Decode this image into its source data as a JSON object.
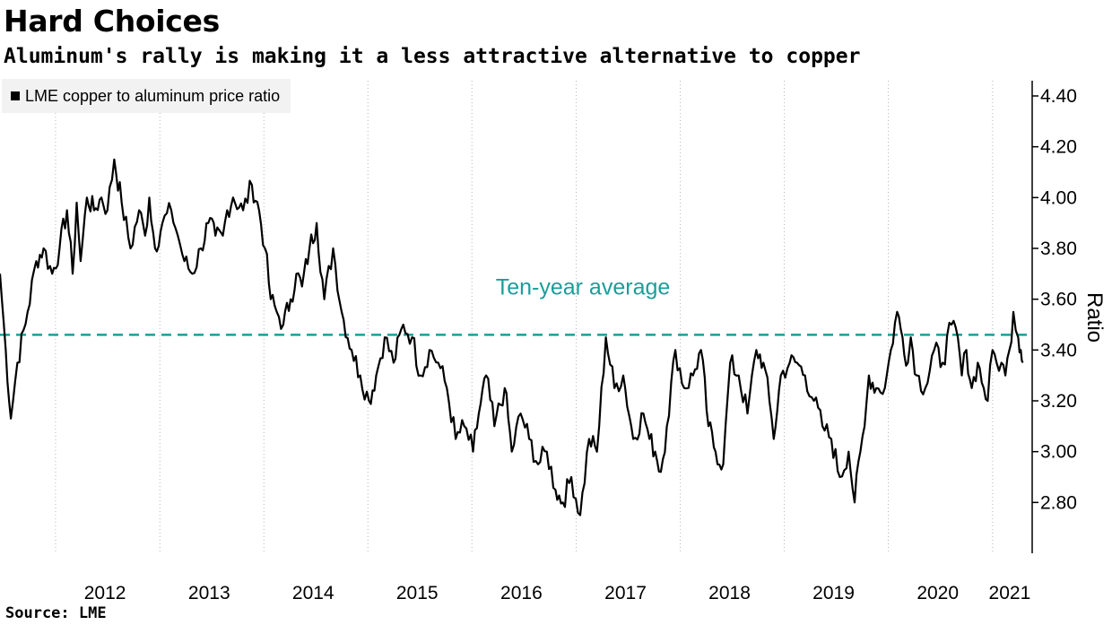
{
  "title": "Hard Choices",
  "subtitle": "Aluminum's rally is making it a less attractive alternative to copper",
  "source": "Source: LME",
  "colors": {
    "series": "#000000",
    "average": "#1a9e9a",
    "legend_bg": "#f2f2f2"
  },
  "chart_data": {
    "type": "line",
    "title": "Hard Choices",
    "subtitle": "Aluminum's rally is making it a less attractive alternative to copper",
    "ylabel": "Ratio",
    "xlabel": "",
    "ylim": [
      2.6,
      4.46
    ],
    "xlim": [
      "2011-06-20",
      "2021-05-20"
    ],
    "y_ticks": [
      2.8,
      3.0,
      3.2,
      3.4,
      3.6,
      3.8,
      4.0,
      4.2,
      4.4
    ],
    "y_tick_labels": [
      "2.80",
      "3.00",
      "3.20",
      "3.40",
      "3.60",
      "3.80",
      "4.00",
      "4.20",
      "4.40"
    ],
    "x_tick_labels": [
      "2012",
      "2013",
      "2014",
      "2015",
      "2016",
      "2017",
      "2018",
      "2019",
      "2020",
      "2021"
    ],
    "x_tick_dates": [
      "2012-01-01",
      "2013-01-01",
      "2014-01-01",
      "2015-01-01",
      "2016-01-01",
      "2017-01-01",
      "2018-01-01",
      "2019-01-01",
      "2020-01-01",
      "2021-01-01"
    ],
    "grid": {
      "vertical": true,
      "horizontal": false,
      "style": "dotted"
    },
    "legend": {
      "position": "top-left",
      "entries": [
        "LME copper to aluminum price ratio"
      ]
    },
    "annotations": [
      {
        "text": "Ten-year average",
        "y": 3.46
      }
    ],
    "series": [
      {
        "name": "LME copper to aluminum price ratio",
        "x": [
          "2011-06-20",
          "2011-07-10",
          "2011-07-28",
          "2011-08-20",
          "2011-09-25",
          "2011-10-25",
          "2011-11-20",
          "2011-12-20",
          "2012-01-15",
          "2012-02-10",
          "2012-03-01",
          "2012-03-15",
          "2012-03-29",
          "2012-04-20",
          "2012-05-15",
          "2012-06-10",
          "2012-07-01",
          "2012-07-25",
          "2012-08-20",
          "2012-09-20",
          "2012-10-20",
          "2012-11-10",
          "2012-11-25",
          "2012-12-15",
          "2013-01-10",
          "2013-02-10",
          "2013-03-05",
          "2013-03-28",
          "2013-04-25",
          "2013-05-25",
          "2013-06-20",
          "2013-07-15",
          "2013-08-10",
          "2013-08-25",
          "2013-09-15",
          "2013-10-20",
          "2013-11-20",
          "2013-12-15",
          "2014-01-05",
          "2014-01-25",
          "2014-02-15",
          "2014-03-10",
          "2014-04-05",
          "2014-04-25",
          "2014-05-15",
          "2014-06-10",
          "2014-07-05",
          "2014-08-01",
          "2014-09-01",
          "2014-10-01",
          "2014-11-05",
          "2014-12-05",
          "2015-01-05",
          "2015-01-30",
          "2015-03-01",
          "2015-04-01",
          "2015-05-05",
          "2015-06-05",
          "2015-07-05",
          "2015-08-05",
          "2015-09-05",
          "2015-10-05",
          "2015-11-05",
          "2015-12-05",
          "2016-01-05",
          "2016-01-25",
          "2016-02-20",
          "2016-03-20",
          "2016-04-25",
          "2016-05-20",
          "2016-06-20",
          "2016-07-20",
          "2016-08-20",
          "2016-09-20",
          "2016-10-20",
          "2016-11-15",
          "2016-12-15",
          "2017-01-15",
          "2017-02-15",
          "2017-03-15",
          "2017-04-15",
          "2017-05-15",
          "2017-06-15",
          "2017-07-20",
          "2017-08-25",
          "2017-09-15",
          "2017-10-05",
          "2017-10-25",
          "2017-11-15",
          "2017-12-15",
          "2018-01-15",
          "2018-02-15",
          "2018-03-15",
          "2018-04-10",
          "2018-05-05",
          "2018-06-01",
          "2018-06-25",
          "2018-07-25",
          "2018-08-25",
          "2018-09-25",
          "2018-10-20",
          "2018-11-10",
          "2018-11-25",
          "2018-12-20",
          "2019-01-20",
          "2019-02-15",
          "2019-03-15",
          "2019-04-15",
          "2019-05-15",
          "2019-06-15",
          "2019-07-15",
          "2019-08-15",
          "2019-09-05",
          "2019-09-25",
          "2019-10-10",
          "2019-10-25",
          "2019-11-20",
          "2019-12-20",
          "2020-01-10",
          "2020-02-01",
          "2020-02-20",
          "2020-03-10",
          "2020-03-20",
          "2020-04-10",
          "2020-05-10",
          "2020-06-10",
          "2020-07-10",
          "2020-08-10",
          "2020-09-01",
          "2020-09-15",
          "2020-10-01",
          "2020-10-20",
          "2020-11-10",
          "2020-12-01",
          "2020-12-15",
          "2021-01-01",
          "2021-01-15",
          "2021-02-01",
          "2021-02-15",
          "2021-03-01",
          "2021-03-15",
          "2021-04-01",
          "2021-04-10",
          "2021-04-17"
        ],
        "values": [
          3.7,
          3.4,
          3.13,
          3.35,
          3.55,
          3.75,
          3.8,
          3.7,
          3.8,
          3.95,
          3.7,
          3.98,
          3.75,
          4.0,
          3.95,
          4.0,
          3.95,
          4.15,
          3.98,
          3.8,
          3.95,
          3.85,
          4.0,
          3.8,
          3.9,
          3.95,
          3.85,
          3.75,
          3.7,
          3.8,
          3.9,
          3.85,
          3.85,
          3.95,
          4.0,
          3.95,
          4.05,
          3.95,
          3.8,
          3.6,
          3.55,
          3.5,
          3.6,
          3.7,
          3.65,
          3.8,
          3.9,
          3.6,
          3.8,
          3.55,
          3.4,
          3.3,
          3.2,
          3.3,
          3.45,
          3.35,
          3.5,
          3.45,
          3.3,
          3.4,
          3.35,
          3.25,
          3.05,
          3.1,
          3.0,
          3.15,
          3.3,
          3.1,
          3.25,
          3.0,
          3.15,
          3.05,
          2.95,
          3.0,
          2.85,
          2.8,
          2.9,
          2.75,
          3.05,
          3.0,
          3.45,
          3.25,
          3.3,
          3.05,
          3.15,
          3.05,
          3.0,
          2.92,
          3.1,
          3.4,
          3.25,
          3.3,
          3.4,
          3.1,
          3.0,
          2.95,
          3.35,
          3.3,
          3.15,
          3.4,
          3.35,
          3.2,
          3.05,
          3.3,
          3.35,
          3.35,
          3.3,
          3.2,
          3.1,
          3.05,
          2.9,
          3.0,
          2.8,
          3.0,
          3.1,
          3.3,
          3.25,
          3.25,
          3.4,
          3.55,
          3.45,
          3.35,
          3.45,
          3.3,
          3.25,
          3.4,
          3.35,
          3.5,
          3.45,
          3.3,
          3.4,
          3.25,
          3.35,
          3.25,
          3.2,
          3.4,
          3.35,
          3.35,
          3.3,
          3.4,
          3.55,
          3.45,
          3.4,
          3.35
        ]
      }
    ]
  }
}
